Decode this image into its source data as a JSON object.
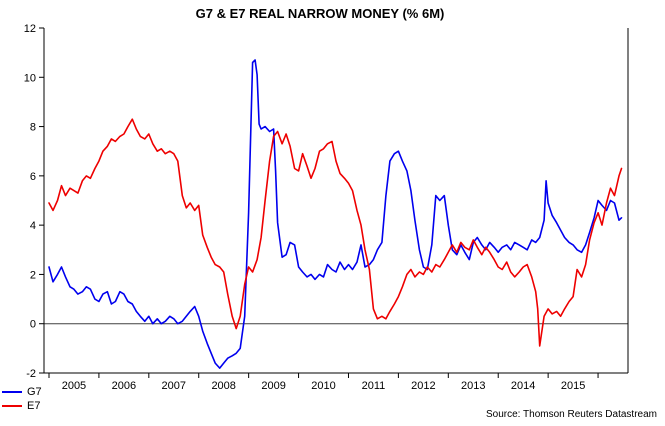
{
  "title": "G7 & E7 REAL NARROW MONEY (% 6M)",
  "source": "Source: Thomson Reuters Datastream",
  "colors": {
    "g7": "#0000ee",
    "e7": "#ee0000",
    "axis": "#000000",
    "zero_line": "#404040"
  },
  "legend": [
    {
      "label": "G7",
      "color": "#0000ee"
    },
    {
      "label": "E7",
      "color": "#ee0000"
    }
  ],
  "chart_data": {
    "type": "line",
    "title": "G7 & E7 REAL NARROW MONEY (% 6M)",
    "xlabel": "",
    "ylabel": "",
    "xlim": [
      2004.4,
      2016.1
    ],
    "ylim": [
      -2,
      12
    ],
    "y_ticks": [
      -2,
      0,
      2,
      4,
      6,
      8,
      10,
      12
    ],
    "x_tick_labels": [
      2005,
      2006,
      2007,
      2008,
      2009,
      2010,
      2011,
      2012,
      2013,
      2014,
      2015
    ],
    "grid": false,
    "zero_line_at": 0,
    "legend_position": "bottom-left",
    "annotations": [
      "Source: Thomson Reuters Datastream"
    ],
    "series": [
      {
        "name": "G7",
        "color": "#0000ee",
        "points": [
          [
            2004.5,
            2.3
          ],
          [
            2004.58,
            1.7
          ],
          [
            2004.67,
            2.0
          ],
          [
            2004.75,
            2.3
          ],
          [
            2004.83,
            1.9
          ],
          [
            2004.92,
            1.5
          ],
          [
            2005.0,
            1.4
          ],
          [
            2005.08,
            1.2
          ],
          [
            2005.17,
            1.3
          ],
          [
            2005.25,
            1.5
          ],
          [
            2005.33,
            1.4
          ],
          [
            2005.42,
            1.0
          ],
          [
            2005.5,
            0.9
          ],
          [
            2005.58,
            1.2
          ],
          [
            2005.67,
            1.3
          ],
          [
            2005.75,
            0.8
          ],
          [
            2005.83,
            0.9
          ],
          [
            2005.92,
            1.3
          ],
          [
            2006.0,
            1.2
          ],
          [
            2006.08,
            0.9
          ],
          [
            2006.17,
            0.8
          ],
          [
            2006.25,
            0.5
          ],
          [
            2006.33,
            0.3
          ],
          [
            2006.42,
            0.1
          ],
          [
            2006.5,
            0.3
          ],
          [
            2006.58,
            0.0
          ],
          [
            2006.67,
            0.2
          ],
          [
            2006.75,
            0.0
          ],
          [
            2006.83,
            0.1
          ],
          [
            2006.92,
            0.3
          ],
          [
            2007.0,
            0.2
          ],
          [
            2007.08,
            0.0
          ],
          [
            2007.17,
            0.1
          ],
          [
            2007.25,
            0.3
          ],
          [
            2007.33,
            0.5
          ],
          [
            2007.42,
            0.7
          ],
          [
            2007.5,
            0.3
          ],
          [
            2007.58,
            -0.3
          ],
          [
            2007.67,
            -0.8
          ],
          [
            2007.75,
            -1.2
          ],
          [
            2007.83,
            -1.6
          ],
          [
            2007.92,
            -1.8
          ],
          [
            2008.0,
            -1.6
          ],
          [
            2008.08,
            -1.4
          ],
          [
            2008.17,
            -1.3
          ],
          [
            2008.25,
            -1.2
          ],
          [
            2008.33,
            -1.0
          ],
          [
            2008.42,
            0.3
          ],
          [
            2008.5,
            4.5
          ],
          [
            2008.58,
            10.6
          ],
          [
            2008.63,
            10.7
          ],
          [
            2008.67,
            10.1
          ],
          [
            2008.71,
            8.1
          ],
          [
            2008.75,
            7.9
          ],
          [
            2008.83,
            8.0
          ],
          [
            2008.92,
            7.8
          ],
          [
            2009.0,
            7.9
          ],
          [
            2009.04,
            6.2
          ],
          [
            2009.08,
            4.1
          ],
          [
            2009.17,
            2.7
          ],
          [
            2009.25,
            2.8
          ],
          [
            2009.33,
            3.3
          ],
          [
            2009.42,
            3.2
          ],
          [
            2009.5,
            2.3
          ],
          [
            2009.58,
            2.1
          ],
          [
            2009.67,
            1.9
          ],
          [
            2009.75,
            2.0
          ],
          [
            2009.83,
            1.8
          ],
          [
            2009.92,
            2.0
          ],
          [
            2010.0,
            1.9
          ],
          [
            2010.08,
            2.4
          ],
          [
            2010.17,
            2.2
          ],
          [
            2010.25,
            2.1
          ],
          [
            2010.33,
            2.5
          ],
          [
            2010.42,
            2.2
          ],
          [
            2010.5,
            2.4
          ],
          [
            2010.58,
            2.2
          ],
          [
            2010.67,
            2.5
          ],
          [
            2010.75,
            3.2
          ],
          [
            2010.83,
            2.3
          ],
          [
            2010.92,
            2.4
          ],
          [
            2011.0,
            2.6
          ],
          [
            2011.08,
            3.0
          ],
          [
            2011.17,
            3.3
          ],
          [
            2011.25,
            5.2
          ],
          [
            2011.33,
            6.6
          ],
          [
            2011.42,
            6.9
          ],
          [
            2011.5,
            7.0
          ],
          [
            2011.58,
            6.6
          ],
          [
            2011.67,
            6.2
          ],
          [
            2011.75,
            5.4
          ],
          [
            2011.83,
            4.2
          ],
          [
            2011.92,
            3.0
          ],
          [
            2012.0,
            2.3
          ],
          [
            2012.08,
            2.2
          ],
          [
            2012.17,
            3.2
          ],
          [
            2012.25,
            5.2
          ],
          [
            2012.33,
            5.0
          ],
          [
            2012.42,
            5.2
          ],
          [
            2012.5,
            4.0
          ],
          [
            2012.58,
            3.0
          ],
          [
            2012.67,
            2.8
          ],
          [
            2012.75,
            3.2
          ],
          [
            2012.83,
            2.9
          ],
          [
            2012.92,
            2.6
          ],
          [
            2013.0,
            3.3
          ],
          [
            2013.08,
            3.5
          ],
          [
            2013.17,
            3.2
          ],
          [
            2013.25,
            3.0
          ],
          [
            2013.33,
            3.3
          ],
          [
            2013.42,
            3.1
          ],
          [
            2013.5,
            2.9
          ],
          [
            2013.58,
            3.1
          ],
          [
            2013.67,
            3.2
          ],
          [
            2013.75,
            3.0
          ],
          [
            2013.83,
            3.3
          ],
          [
            2013.92,
            3.2
          ],
          [
            2014.0,
            3.1
          ],
          [
            2014.08,
            3.0
          ],
          [
            2014.17,
            3.4
          ],
          [
            2014.25,
            3.3
          ],
          [
            2014.33,
            3.5
          ],
          [
            2014.42,
            4.2
          ],
          [
            2014.46,
            5.8
          ],
          [
            2014.5,
            4.9
          ],
          [
            2014.58,
            4.4
          ],
          [
            2014.67,
            4.1
          ],
          [
            2014.75,
            3.8
          ],
          [
            2014.83,
            3.5
          ],
          [
            2014.92,
            3.3
          ],
          [
            2015.0,
            3.2
          ],
          [
            2015.08,
            3.0
          ],
          [
            2015.17,
            2.9
          ],
          [
            2015.25,
            3.2
          ],
          [
            2015.33,
            3.7
          ],
          [
            2015.42,
            4.3
          ],
          [
            2015.5,
            5.0
          ],
          [
            2015.58,
            4.8
          ],
          [
            2015.67,
            4.6
          ],
          [
            2015.75,
            5.0
          ],
          [
            2015.83,
            4.9
          ],
          [
            2015.92,
            4.2
          ],
          [
            2015.97,
            4.3
          ]
        ]
      },
      {
        "name": "E7",
        "color": "#ee0000",
        "points": [
          [
            2004.5,
            4.9
          ],
          [
            2004.58,
            4.6
          ],
          [
            2004.67,
            5.0
          ],
          [
            2004.75,
            5.6
          ],
          [
            2004.83,
            5.2
          ],
          [
            2004.92,
            5.5
          ],
          [
            2005.0,
            5.4
          ],
          [
            2005.08,
            5.3
          ],
          [
            2005.17,
            5.8
          ],
          [
            2005.25,
            6.0
          ],
          [
            2005.33,
            5.9
          ],
          [
            2005.42,
            6.3
          ],
          [
            2005.5,
            6.6
          ],
          [
            2005.58,
            7.0
          ],
          [
            2005.67,
            7.2
          ],
          [
            2005.75,
            7.5
          ],
          [
            2005.83,
            7.4
          ],
          [
            2005.92,
            7.6
          ],
          [
            2006.0,
            7.7
          ],
          [
            2006.08,
            8.0
          ],
          [
            2006.17,
            8.3
          ],
          [
            2006.25,
            7.9
          ],
          [
            2006.33,
            7.6
          ],
          [
            2006.42,
            7.5
          ],
          [
            2006.5,
            7.7
          ],
          [
            2006.58,
            7.3
          ],
          [
            2006.67,
            7.0
          ],
          [
            2006.75,
            7.1
          ],
          [
            2006.83,
            6.9
          ],
          [
            2006.92,
            7.0
          ],
          [
            2007.0,
            6.9
          ],
          [
            2007.08,
            6.6
          ],
          [
            2007.17,
            5.2
          ],
          [
            2007.25,
            4.7
          ],
          [
            2007.33,
            4.9
          ],
          [
            2007.42,
            4.6
          ],
          [
            2007.5,
            4.8
          ],
          [
            2007.58,
            3.6
          ],
          [
            2007.67,
            3.1
          ],
          [
            2007.75,
            2.7
          ],
          [
            2007.83,
            2.4
          ],
          [
            2007.92,
            2.3
          ],
          [
            2008.0,
            2.1
          ],
          [
            2008.08,
            1.2
          ],
          [
            2008.17,
            0.3
          ],
          [
            2008.25,
            -0.2
          ],
          [
            2008.33,
            0.3
          ],
          [
            2008.42,
            1.6
          ],
          [
            2008.5,
            2.3
          ],
          [
            2008.58,
            2.1
          ],
          [
            2008.67,
            2.6
          ],
          [
            2008.75,
            3.5
          ],
          [
            2008.83,
            5.0
          ],
          [
            2008.92,
            6.6
          ],
          [
            2009.0,
            7.6
          ],
          [
            2009.08,
            7.8
          ],
          [
            2009.17,
            7.3
          ],
          [
            2009.25,
            7.7
          ],
          [
            2009.33,
            7.2
          ],
          [
            2009.42,
            6.3
          ],
          [
            2009.5,
            6.2
          ],
          [
            2009.58,
            6.9
          ],
          [
            2009.67,
            6.4
          ],
          [
            2009.75,
            5.9
          ],
          [
            2009.83,
            6.3
          ],
          [
            2009.92,
            7.0
          ],
          [
            2010.0,
            7.1
          ],
          [
            2010.08,
            7.3
          ],
          [
            2010.17,
            7.4
          ],
          [
            2010.25,
            6.6
          ],
          [
            2010.33,
            6.1
          ],
          [
            2010.42,
            5.9
          ],
          [
            2010.5,
            5.7
          ],
          [
            2010.58,
            5.4
          ],
          [
            2010.67,
            4.6
          ],
          [
            2010.75,
            4.0
          ],
          [
            2010.83,
            3.0
          ],
          [
            2010.92,
            2.2
          ],
          [
            2011.0,
            0.6
          ],
          [
            2011.08,
            0.2
          ],
          [
            2011.17,
            0.3
          ],
          [
            2011.25,
            0.2
          ],
          [
            2011.33,
            0.5
          ],
          [
            2011.42,
            0.8
          ],
          [
            2011.5,
            1.1
          ],
          [
            2011.58,
            1.5
          ],
          [
            2011.67,
            2.0
          ],
          [
            2011.75,
            2.2
          ],
          [
            2011.83,
            1.9
          ],
          [
            2011.92,
            2.1
          ],
          [
            2012.0,
            2.0
          ],
          [
            2012.08,
            2.3
          ],
          [
            2012.17,
            2.1
          ],
          [
            2012.25,
            2.4
          ],
          [
            2012.33,
            2.3
          ],
          [
            2012.42,
            2.6
          ],
          [
            2012.5,
            2.9
          ],
          [
            2012.58,
            3.2
          ],
          [
            2012.67,
            2.9
          ],
          [
            2012.75,
            3.3
          ],
          [
            2012.83,
            3.1
          ],
          [
            2012.92,
            3.0
          ],
          [
            2013.0,
            3.4
          ],
          [
            2013.08,
            3.1
          ],
          [
            2013.17,
            2.8
          ],
          [
            2013.25,
            3.1
          ],
          [
            2013.33,
            2.9
          ],
          [
            2013.42,
            2.6
          ],
          [
            2013.5,
            2.3
          ],
          [
            2013.58,
            2.2
          ],
          [
            2013.67,
            2.5
          ],
          [
            2013.75,
            2.1
          ],
          [
            2013.83,
            1.9
          ],
          [
            2013.92,
            2.1
          ],
          [
            2014.0,
            2.3
          ],
          [
            2014.08,
            2.4
          ],
          [
            2014.17,
            1.9
          ],
          [
            2014.25,
            1.3
          ],
          [
            2014.29,
            0.6
          ],
          [
            2014.33,
            -0.9
          ],
          [
            2014.42,
            0.3
          ],
          [
            2014.5,
            0.6
          ],
          [
            2014.58,
            0.4
          ],
          [
            2014.67,
            0.5
          ],
          [
            2014.75,
            0.3
          ],
          [
            2014.83,
            0.6
          ],
          [
            2014.92,
            0.9
          ],
          [
            2015.0,
            1.1
          ],
          [
            2015.08,
            2.2
          ],
          [
            2015.17,
            1.9
          ],
          [
            2015.25,
            2.4
          ],
          [
            2015.33,
            3.4
          ],
          [
            2015.42,
            4.1
          ],
          [
            2015.5,
            4.5
          ],
          [
            2015.58,
            4.0
          ],
          [
            2015.67,
            4.9
          ],
          [
            2015.75,
            5.5
          ],
          [
            2015.83,
            5.2
          ],
          [
            2015.92,
            6.0
          ],
          [
            2015.97,
            6.3
          ]
        ]
      }
    ]
  }
}
